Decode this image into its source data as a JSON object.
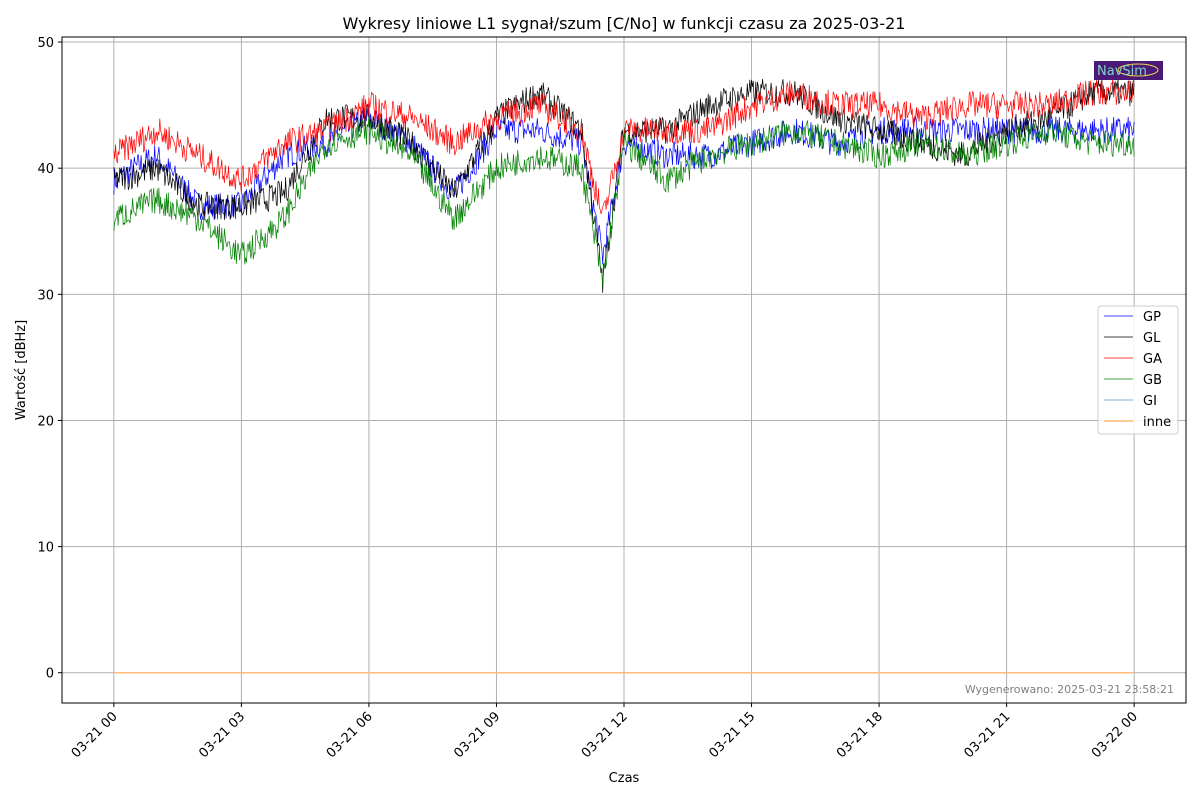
{
  "chart_data": {
    "type": "line",
    "title": "Wykresy liniowe L1 sygnał/szum [C/No] w funkcji czasu za 2025-03-21",
    "xlabel": "Czas",
    "ylabel": "Wartość [dBHz]",
    "x_unit": "hours since 2025-03-21 00:00",
    "xlim": [
      -1.22,
      25.22
    ],
    "ylim": [
      -2.4,
      50.4
    ],
    "xticks": [
      0,
      3,
      6,
      9,
      12,
      15,
      18,
      21,
      24
    ],
    "xtick_labels": [
      "03-21 00",
      "03-21 03",
      "03-21 06",
      "03-21 09",
      "03-21 12",
      "03-21 15",
      "03-21 18",
      "03-21 21",
      "03-22 00"
    ],
    "yticks": [
      0,
      10,
      20,
      30,
      40,
      50
    ],
    "ytick_labels": [
      "0",
      "10",
      "20",
      "30",
      "40",
      "50"
    ],
    "grid": true,
    "legend_position": "center-right",
    "x": [
      0,
      1,
      2,
      3,
      4,
      5,
      6,
      7,
      8,
      9,
      10,
      11,
      11.5,
      12,
      13,
      14,
      15,
      16,
      17,
      18,
      19,
      20,
      21,
      22,
      23,
      24
    ],
    "series": [
      {
        "name": "GP",
        "color": "#0000ff",
        "values": [
          39,
          41,
          37,
          37,
          41,
          42,
          44,
          42,
          38,
          43,
          43,
          42,
          33,
          42,
          41,
          41,
          42,
          43,
          42,
          43,
          43,
          43,
          43,
          43,
          43,
          43
        ]
      },
      {
        "name": "GL",
        "color": "#000000",
        "values": [
          39,
          40,
          37,
          37,
          38,
          44,
          44,
          42,
          38,
          44,
          46,
          43,
          31,
          43,
          43,
          45,
          46,
          46,
          44,
          43,
          42,
          41,
          43,
          44,
          46,
          46
        ]
      },
      {
        "name": "GA",
        "color": "#ff0000",
        "values": [
          41,
          43,
          41,
          39,
          42,
          43,
          45,
          44,
          42,
          44,
          45,
          43,
          36,
          43,
          43,
          43,
          45,
          46,
          45,
          45,
          44,
          45,
          45,
          45,
          46,
          46
        ]
      },
      {
        "name": "GB",
        "color": "#008000",
        "values": [
          36,
          37.5,
          36,
          33,
          36,
          42,
          43,
          41,
          36,
          40,
          41,
          40,
          31,
          42,
          39,
          41,
          42,
          43,
          42,
          41,
          42,
          41,
          42,
          43,
          42,
          42
        ]
      },
      {
        "name": "GI",
        "color": "#aec7e8",
        "values": [
          0,
          0,
          0,
          0,
          0,
          0,
          0,
          0,
          0,
          0,
          0,
          0,
          0,
          0,
          0,
          0,
          0,
          0,
          0,
          0,
          0,
          0,
          0,
          0,
          0,
          0
        ]
      },
      {
        "name": "inne",
        "color": "#ffbb78",
        "values": [
          0,
          0,
          0,
          0,
          0,
          0,
          0,
          0,
          0,
          0,
          0,
          0,
          0,
          0,
          0,
          0,
          0,
          0,
          0,
          0,
          0,
          0,
          0,
          0,
          0,
          0
        ]
      }
    ],
    "annotations": {
      "generated": "Wygenerowano: 2025-03-21 23:58:21",
      "logo_text": "NavSim"
    }
  }
}
